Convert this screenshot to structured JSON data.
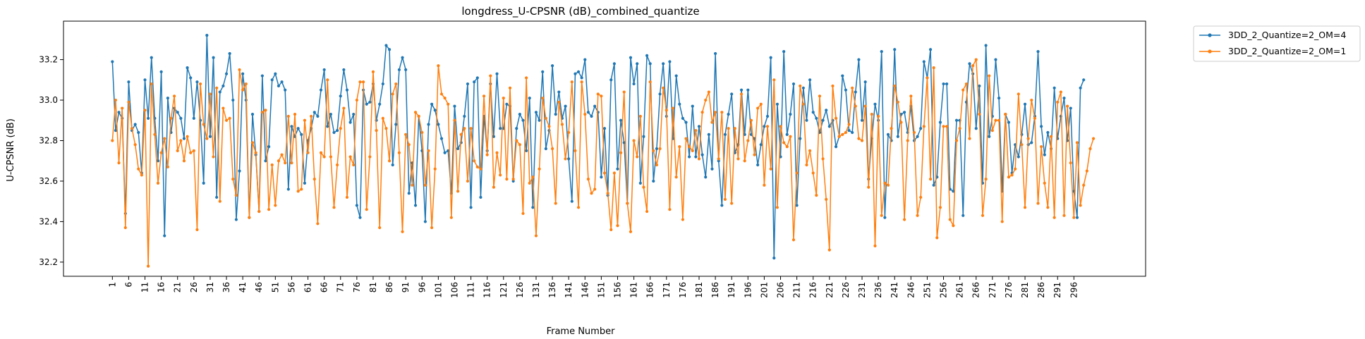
{
  "chart_data": {
    "type": "line",
    "title": "longdress_U-CPSNR (dB)_combined_quantize",
    "xlabel": "Frame Number",
    "ylabel": "U-CPSNR (dB)",
    "xlim": [
      -14,
      318
    ],
    "ylim": [
      32.13,
      33.39
    ],
    "yticks": [
      32.2,
      32.4,
      32.6,
      32.8,
      33.0,
      33.2
    ],
    "ytick_labels": [
      "32.2",
      "32.4",
      "32.6",
      "32.8",
      "33.0",
      "33.2"
    ],
    "xtick_labels": [
      "1",
      "6",
      "11",
      "16",
      "21",
      "26",
      "31",
      "36",
      "41",
      "46",
      "51",
      "56",
      "61",
      "66",
      "71",
      "76",
      "81",
      "86",
      "91",
      "96",
      "101",
      "106",
      "111",
      "116",
      "121",
      "126",
      "131",
      "136",
      "141",
      "146",
      "151",
      "156",
      "161",
      "166",
      "171",
      "176",
      "181",
      "186",
      "191",
      "196",
      "201",
      "206",
      "211",
      "216",
      "221",
      "226",
      "231",
      "236",
      "241",
      "246",
      "251",
      "256",
      "261",
      "266",
      "271",
      "276",
      "281",
      "286",
      "291",
      "296"
    ],
    "legend_position": "outside-top-right",
    "grid": false,
    "x_start": 1,
    "series": [
      {
        "name": "3DD_2_Quantize=2_OM=4",
        "color": "#1f77b4",
        "values": [
          33.19,
          32.85,
          32.94,
          32.91,
          32.44,
          33.09,
          32.85,
          32.88,
          32.84,
          32.64,
          33.1,
          32.91,
          33.21,
          32.91,
          32.7,
          33.14,
          32.33,
          33.01,
          32.84,
          32.96,
          32.94,
          32.91,
          32.81,
          33.16,
          33.11,
          32.91,
          33.09,
          32.9,
          32.59,
          33.32,
          32.82,
          33.21,
          32.52,
          33.04,
          33.07,
          33.13,
          33.23,
          33.0,
          32.41,
          32.65,
          33.13,
          33.0,
          32.42,
          32.93,
          32.73,
          32.45,
          33.12,
          32.7,
          32.77,
          33.1,
          33.13,
          33.07,
          33.09,
          33.05,
          32.56,
          32.87,
          32.82,
          32.86,
          32.83,
          32.59,
          32.8,
          32.86,
          32.94,
          32.92,
          33.05,
          33.15,
          32.87,
          32.93,
          32.84,
          32.85,
          33.02,
          33.15,
          33.05,
          32.89,
          32.93,
          32.48,
          32.42,
          33.05,
          32.98,
          32.99,
          33.08,
          32.9,
          32.98,
          33.08,
          33.27,
          33.25,
          32.68,
          32.88,
          33.15,
          33.21,
          33.15,
          32.54,
          32.69,
          32.48,
          32.92,
          32.75,
          32.4,
          32.88,
          32.98,
          32.95,
          32.88,
          32.81,
          32.74,
          32.75,
          32.54,
          32.97,
          32.76,
          32.79,
          32.92,
          33.08,
          32.47,
          33.09,
          33.11,
          32.52,
          32.92,
          32.75,
          33.08,
          32.82,
          33.13,
          32.86,
          32.86,
          32.98,
          32.97,
          32.6,
          32.86,
          32.93,
          32.9,
          32.75,
          33.01,
          32.47,
          32.94,
          32.9,
          33.14,
          32.76,
          32.85,
          33.17,
          32.93,
          33.04,
          32.91,
          32.97,
          32.71,
          32.5,
          33.13,
          33.14,
          33.11,
          33.2,
          32.94,
          32.92,
          32.97,
          32.94,
          32.62,
          32.86,
          32.53,
          33.1,
          33.18,
          32.66,
          32.9,
          32.79,
          32.49,
          33.21,
          33.08,
          33.18,
          32.59,
          32.82,
          33.22,
          33.18,
          32.6,
          32.76,
          33.03,
          33.18,
          32.92,
          33.19,
          32.81,
          33.12,
          32.98,
          32.91,
          32.89,
          32.72,
          32.97,
          32.72,
          32.87,
          32.73,
          32.62,
          32.83,
          32.66,
          33.23,
          32.7,
          32.48,
          32.83,
          32.93,
          33.03,
          32.74,
          32.78,
          33.05,
          32.83,
          33.05,
          32.83,
          32.81,
          32.68,
          32.78,
          32.87,
          32.92,
          33.21,
          32.22,
          32.98,
          32.72,
          33.24,
          32.83,
          32.93,
          33.08,
          32.48,
          32.81,
          33.06,
          32.9,
          33.1,
          32.94,
          32.91,
          32.84,
          32.9,
          32.95,
          32.87,
          32.9,
          32.77,
          32.82,
          33.12,
          33.05,
          32.85,
          32.84,
          33.04,
          33.2,
          32.9,
          33.09,
          32.61,
          32.81,
          32.98,
          32.9,
          33.24,
          32.42,
          32.83,
          32.8,
          33.25,
          32.82,
          32.93,
          32.94,
          32.84,
          32.97,
          32.8,
          32.82,
          32.86,
          33.19,
          33.11,
          33.25,
          32.58,
          32.62,
          32.89,
          33.08,
          33.08,
          32.56,
          32.55,
          32.9,
          32.9,
          32.43,
          32.99,
          33.18,
          33.13,
          32.86,
          33.07,
          32.59,
          33.27,
          32.82,
          32.92,
          33.2,
          33.01,
          32.55,
          32.93,
          32.89,
          32.64,
          32.78,
          32.72,
          32.83,
          32.98,
          32.78,
          32.79,
          32.92,
          33.24,
          32.87,
          32.73,
          32.84,
          32.76,
          33.06,
          32.81,
          32.92,
          33.01,
          32.8,
          32.96,
          32.55,
          32.42,
          33.06,
          33.1
        ]
      },
      {
        "name": "3DD_2_Quantize=2_OM=1",
        "color": "#ff7f0e",
        "values": [
          32.8,
          33.0,
          32.69,
          32.96,
          32.37,
          32.99,
          32.86,
          32.78,
          32.66,
          32.63,
          32.95,
          32.18,
          33.08,
          32.83,
          32.59,
          32.74,
          32.81,
          32.67,
          32.91,
          33.02,
          32.75,
          32.8,
          32.7,
          32.82,
          32.74,
          32.75,
          32.36,
          33.08,
          32.88,
          32.81,
          33.03,
          32.72,
          33.06,
          32.5,
          32.96,
          32.9,
          32.91,
          32.61,
          32.53,
          33.15,
          33.05,
          33.08,
          32.42,
          32.79,
          32.74,
          32.45,
          32.94,
          32.95,
          32.46,
          32.68,
          32.48,
          32.7,
          32.73,
          32.69,
          32.92,
          32.69,
          32.93,
          32.55,
          32.56,
          32.9,
          32.74,
          32.92,
          32.61,
          32.39,
          32.74,
          32.72,
          33.1,
          32.72,
          32.47,
          32.68,
          32.86,
          32.96,
          32.52,
          32.72,
          32.68,
          33.0,
          33.09,
          33.09,
          32.46,
          32.72,
          33.14,
          32.85,
          32.37,
          32.91,
          32.86,
          32.7,
          33.03,
          33.08,
          32.74,
          32.35,
          32.83,
          32.78,
          32.58,
          32.94,
          32.92,
          32.84,
          32.58,
          32.75,
          32.37,
          32.66,
          33.17,
          33.03,
          33.01,
          32.98,
          32.42,
          32.9,
          32.55,
          32.83,
          32.86,
          32.6,
          32.86,
          32.7,
          32.67,
          32.66,
          33.02,
          32.73,
          33.12,
          32.57,
          32.74,
          32.63,
          33.01,
          32.61,
          33.06,
          32.61,
          32.8,
          32.78,
          32.44,
          33.11,
          32.59,
          32.62,
          32.33,
          32.66,
          33.01,
          32.91,
          32.87,
          32.76,
          32.49,
          32.99,
          32.88,
          32.71,
          32.84,
          33.09,
          32.75,
          32.47,
          33.09,
          32.93,
          32.61,
          32.54,
          32.56,
          33.03,
          33.02,
          32.64,
          32.54,
          32.36,
          32.64,
          32.38,
          32.74,
          33.04,
          32.49,
          32.35,
          32.8,
          32.72,
          32.92,
          32.57,
          32.45,
          33.09,
          32.75,
          32.68,
          32.76,
          33.06,
          32.95,
          32.46,
          32.96,
          32.62,
          32.77,
          32.41,
          32.81,
          32.77,
          32.75,
          32.85,
          32.71,
          32.94,
          33.0,
          33.04,
          32.89,
          32.94,
          32.71,
          32.94,
          32.51,
          32.86,
          32.49,
          32.86,
          32.71,
          33.03,
          32.7,
          32.8,
          32.9,
          32.73,
          32.96,
          32.98,
          32.58,
          32.87,
          32.66,
          33.1,
          32.47,
          32.87,
          32.79,
          32.77,
          32.82,
          32.31,
          32.64,
          33.07,
          32.98,
          32.68,
          32.75,
          32.64,
          32.53,
          33.02,
          32.71,
          32.51,
          32.26,
          33.07,
          32.91,
          32.82,
          32.83,
          32.84,
          32.88,
          33.06,
          32.97,
          32.81,
          32.8,
          32.97,
          32.57,
          32.93,
          32.28,
          32.92,
          32.43,
          32.59,
          32.58,
          32.86,
          33.07,
          32.99,
          32.89,
          32.41,
          32.8,
          33.02,
          32.84,
          32.43,
          32.52,
          32.87,
          33.11,
          32.61,
          33.16,
          32.32,
          32.47,
          32.87,
          32.87,
          32.41,
          32.38,
          32.8,
          32.86,
          33.05,
          33.08,
          32.81,
          33.17,
          33.2,
          32.93,
          32.43,
          32.61,
          33.12,
          32.85,
          32.9,
          32.9,
          32.4,
          32.93,
          32.62,
          32.63,
          32.66,
          33.03,
          32.78,
          32.47,
          32.81,
          33.0,
          32.91,
          32.49,
          32.77,
          32.59,
          32.47,
          32.82,
          32.42,
          32.99,
          33.04,
          32.43,
          32.97,
          32.69,
          32.42,
          32.79,
          32.48,
          32.58,
          32.65,
          32.76,
          32.81
        ]
      }
    ]
  }
}
